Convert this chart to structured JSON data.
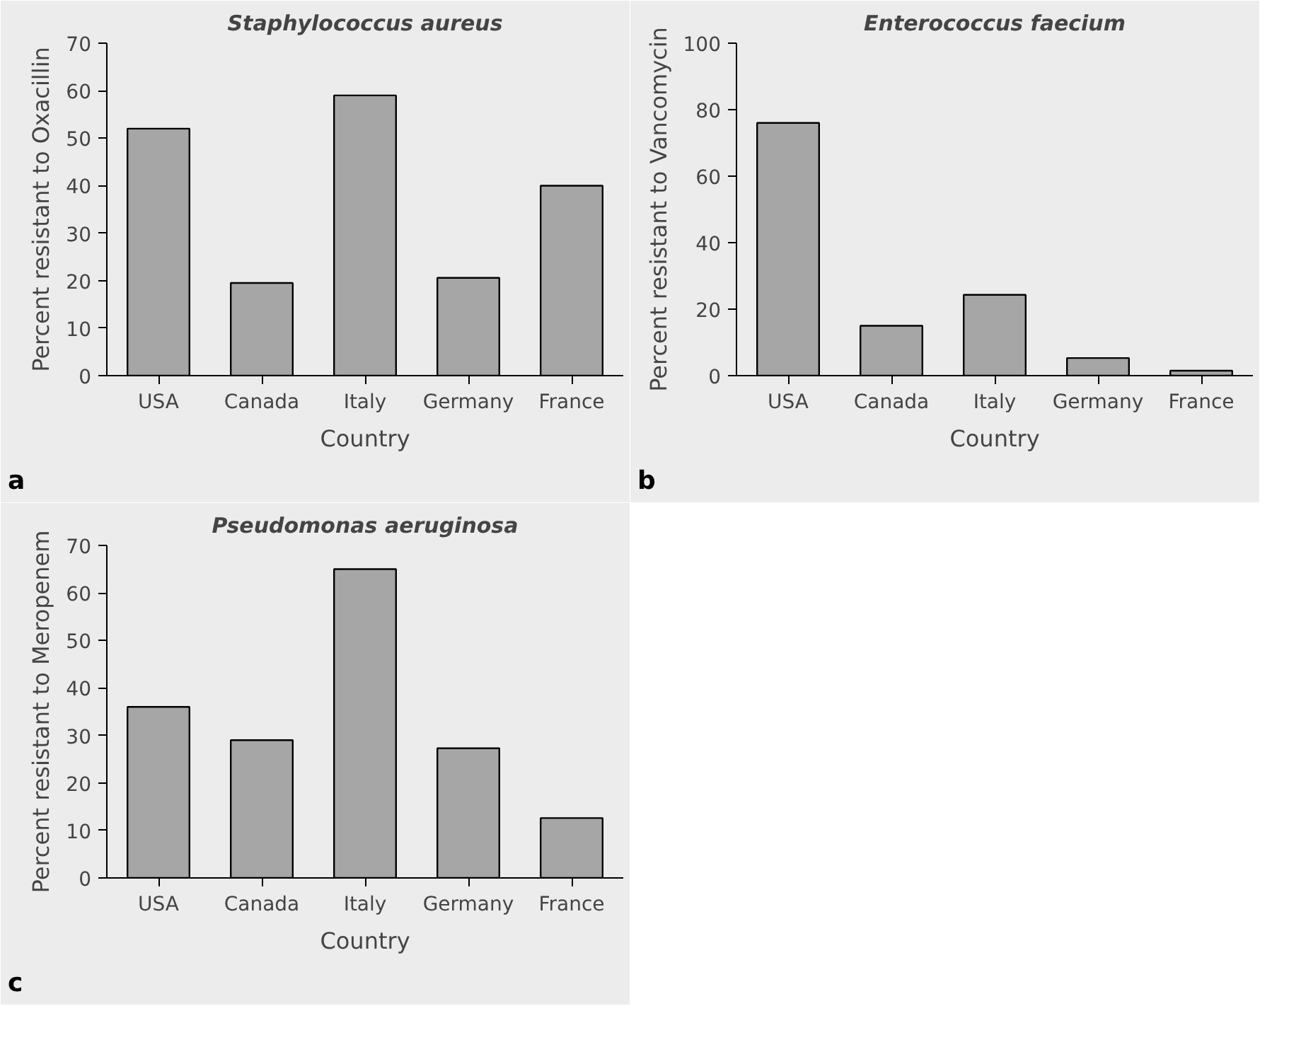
{
  "chart_data": [
    {
      "type": "bar",
      "title": "Staphylococcus aureus",
      "xlabel": "Country",
      "ylabel": "Percent resistant to Oxacillin",
      "categories": [
        "USA",
        "Canada",
        "Italy",
        "Germany",
        "France"
      ],
      "values": [
        52,
        19.5,
        59,
        20.6,
        40
      ],
      "color": "#a6a6a6",
      "ylim": [
        0,
        70
      ],
      "yticks": [
        0,
        10,
        20,
        30,
        40,
        50,
        60,
        70
      ],
      "annotations": [
        "a"
      ],
      "grid": false
    },
    {
      "type": "bar",
      "title": "Enterococcus faecium",
      "xlabel": "Country",
      "ylabel": "Percent resistant to Vancomycin",
      "categories": [
        "USA",
        "Canada",
        "Italy",
        "Germany",
        "France"
      ],
      "values": [
        76,
        15,
        24.3,
        5.3,
        1.5
      ],
      "color": "#a6a6a6",
      "ylim": [
        0,
        100
      ],
      "yticks": [
        0,
        20,
        40,
        60,
        80,
        100
      ],
      "annotations": [
        "b"
      ],
      "grid": false
    },
    {
      "type": "bar",
      "title": "Pseudomonas aeruginosa",
      "xlabel": "Country",
      "ylabel": "Percent resistant to Meropenem",
      "categories": [
        "USA",
        "Canada",
        "Italy",
        "Germany",
        "France"
      ],
      "values": [
        36,
        29,
        65,
        27.3,
        12.6
      ],
      "color": "#a6a6a6",
      "ylim": [
        0,
        70
      ],
      "yticks": [
        0,
        10,
        20,
        30,
        40,
        50,
        60,
        70
      ],
      "annotations": [
        "c"
      ],
      "grid": false
    }
  ]
}
